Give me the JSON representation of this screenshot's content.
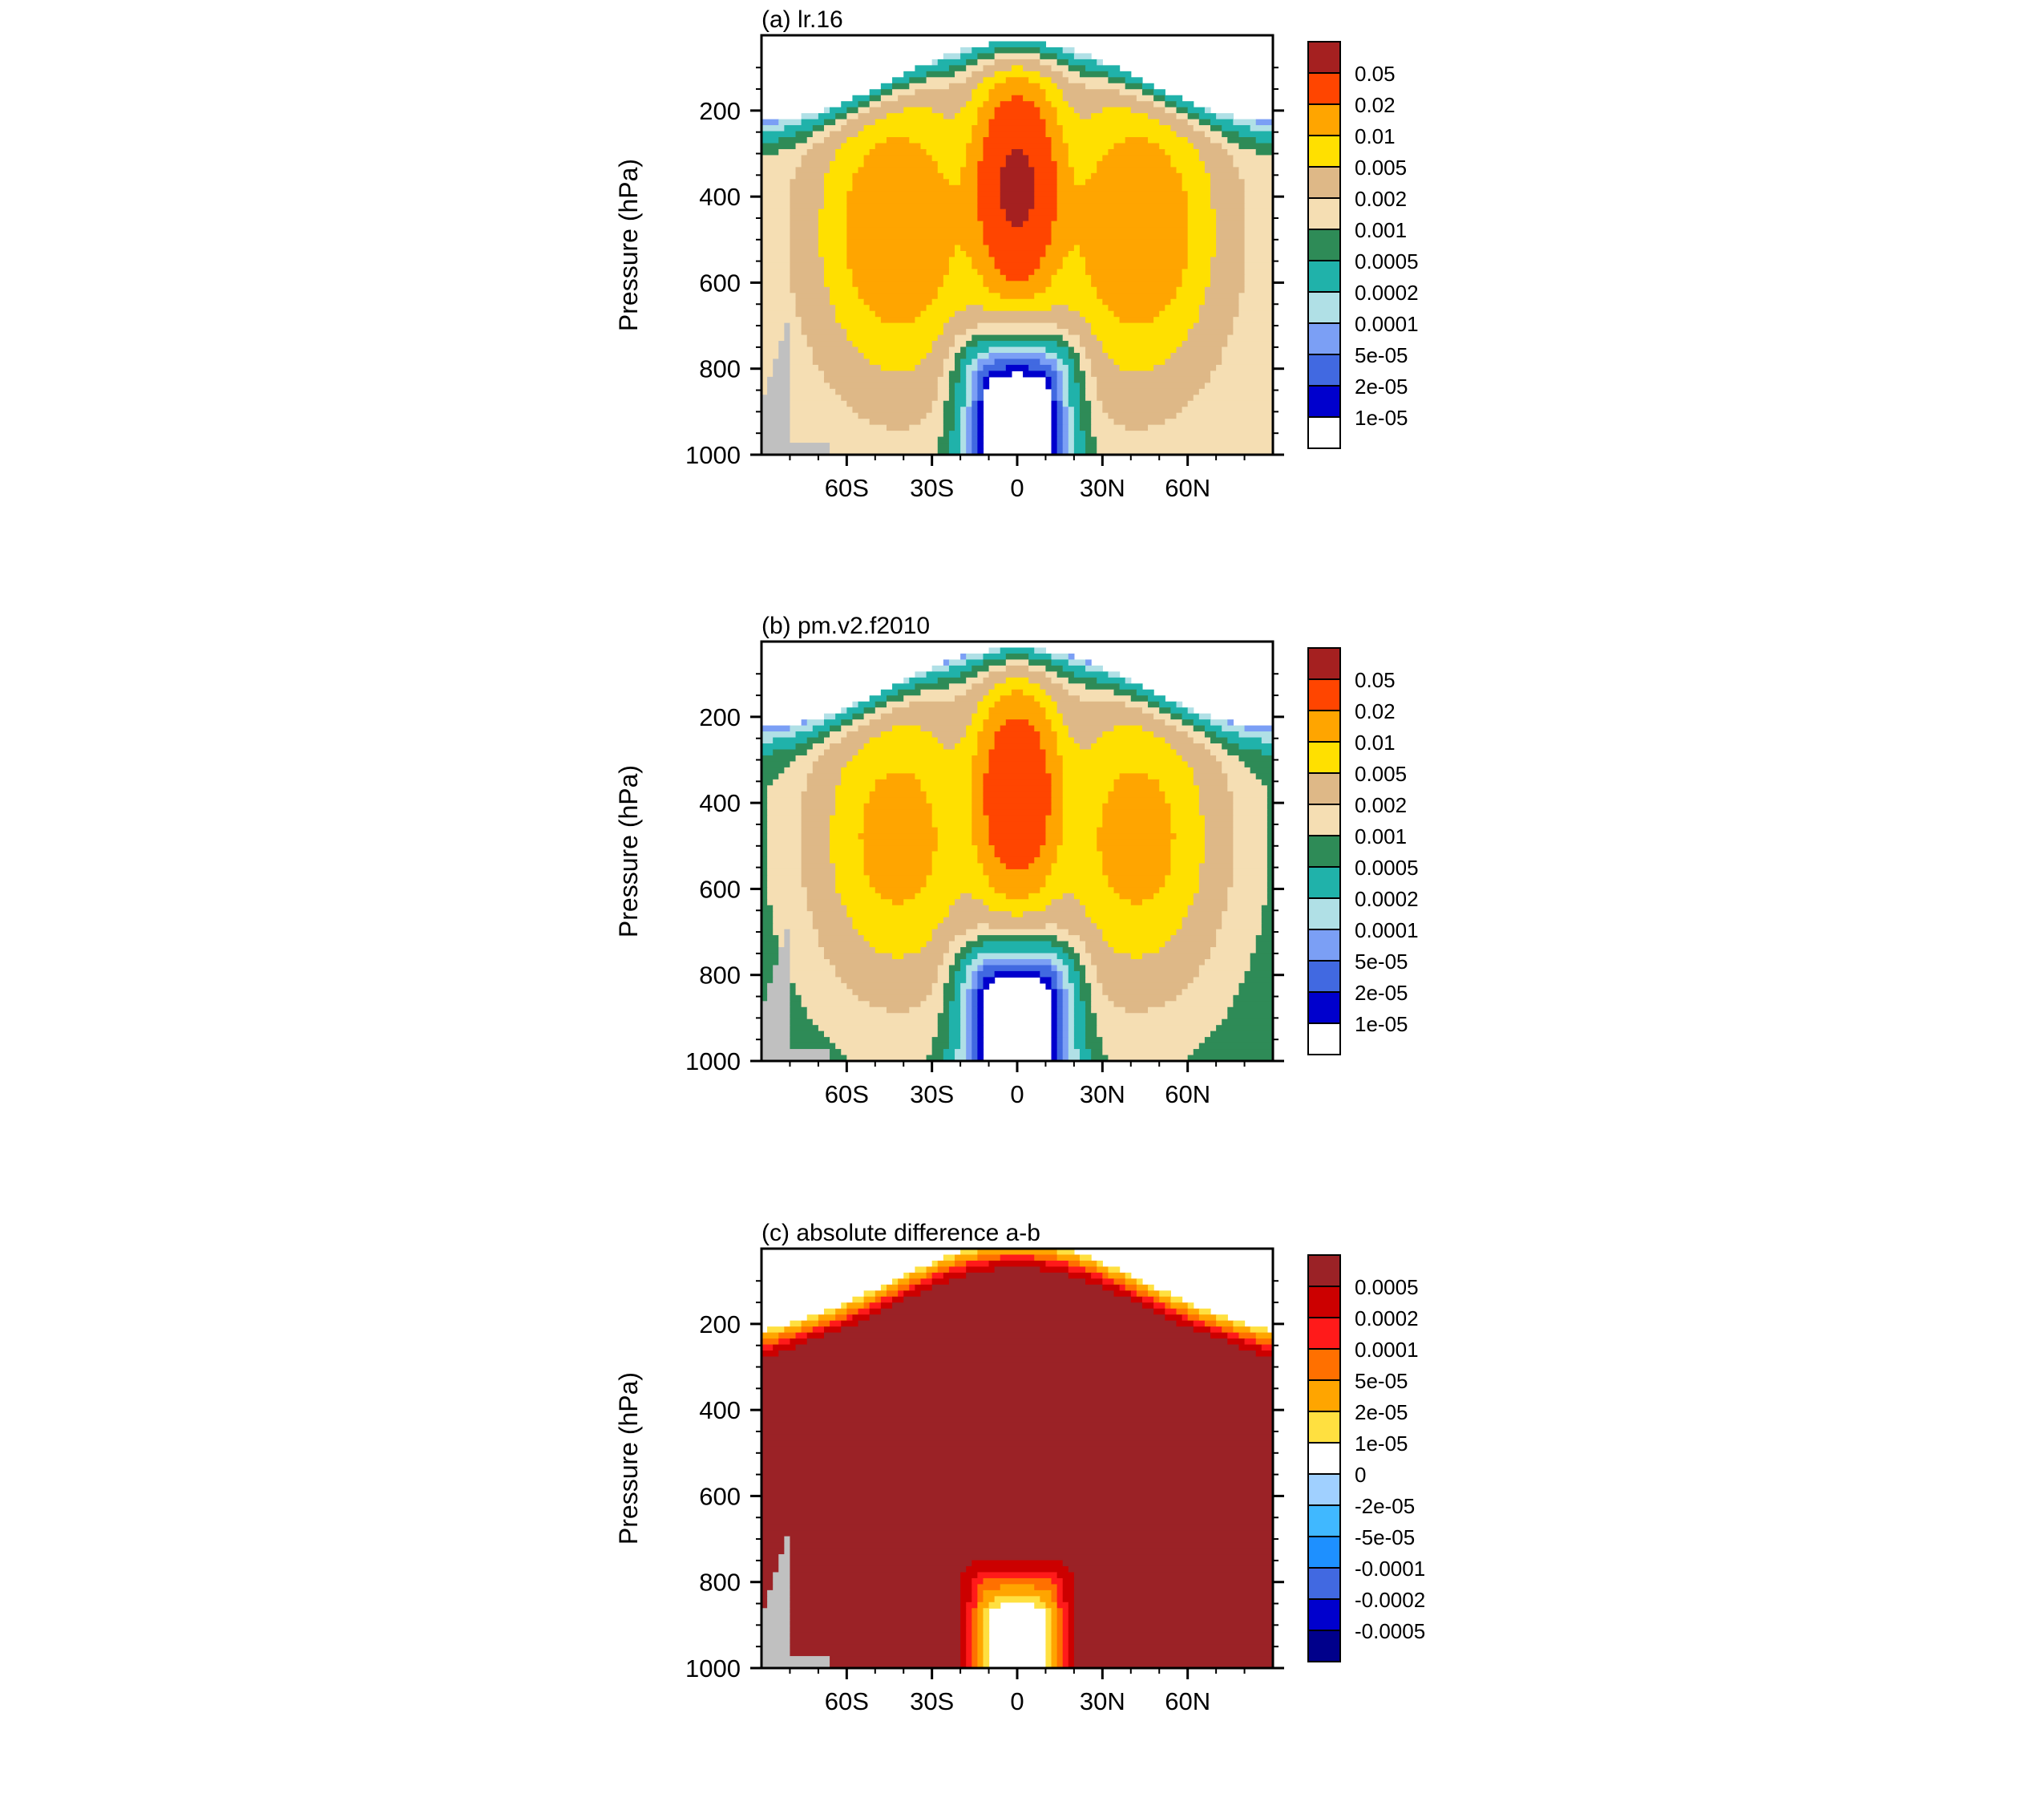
{
  "chart_data": [
    {
      "type": "heatmap",
      "title": "(a) lr.16",
      "ylabel": "Pressure (hPa)",
      "xlabel": "",
      "y_ticks": [
        200,
        400,
        600,
        800,
        1000
      ],
      "x_ticks": [
        "60S",
        "30S",
        "0",
        "30N",
        "60N"
      ],
      "ylim": [
        1000,
        25
      ],
      "y_reversed": true,
      "x_range": [
        "90S",
        "90N"
      ],
      "field": "single",
      "levels": [
        "0.05",
        "0.02",
        "0.01",
        "0.005",
        "0.002",
        "0.001",
        "0.0005",
        "0.0002",
        "0.0001",
        "5e-05",
        "2e-05",
        "1e-05"
      ],
      "colors": [
        "#a52020",
        "#ff4500",
        "#ffa500",
        "#ffe000",
        "#deb887",
        "#f5deb3",
        "#2e8b57",
        "#20b2aa",
        "#b0e0e6",
        "#7b9ff5",
        "#4169e1",
        "#0000cd",
        "#ffffff"
      ],
      "peak_fraction": 1.0
    },
    {
      "type": "heatmap",
      "title": "(b) pm.v2.f2010",
      "ylabel": "Pressure (hPa)",
      "xlabel": "",
      "y_ticks": [
        200,
        400,
        600,
        800,
        1000
      ],
      "x_ticks": [
        "60S",
        "30S",
        "0",
        "30N",
        "60N"
      ],
      "ylim": [
        1000,
        25
      ],
      "y_reversed": true,
      "x_range": [
        "90S",
        "90N"
      ],
      "field": "single",
      "levels": [
        "0.05",
        "0.02",
        "0.01",
        "0.005",
        "0.002",
        "0.001",
        "0.0005",
        "0.0002",
        "0.0001",
        "5e-05",
        "2e-05",
        "1e-05"
      ],
      "colors": [
        "#a52020",
        "#ff4500",
        "#ffa500",
        "#ffe000",
        "#deb887",
        "#f5deb3",
        "#2e8b57",
        "#20b2aa",
        "#b0e0e6",
        "#7b9ff5",
        "#4169e1",
        "#0000cd",
        "#ffffff"
      ],
      "peak_fraction": 0.72
    },
    {
      "type": "heatmap",
      "title": "(c) absolute difference a-b",
      "ylabel": "Pressure (hPa)",
      "xlabel": "",
      "y_ticks": [
        200,
        400,
        600,
        800,
        1000
      ],
      "x_ticks": [
        "60S",
        "30S",
        "0",
        "30N",
        "60N"
      ],
      "ylim": [
        1000,
        25
      ],
      "y_reversed": true,
      "x_range": [
        "90S",
        "90N"
      ],
      "field": "difference",
      "levels": [
        "0.0005",
        "0.0002",
        "0.0001",
        "5e-05",
        "2e-05",
        "1e-05",
        "0",
        "-2e-05",
        "-5e-05",
        "-0.0001",
        "-0.0002",
        "-0.0005"
      ],
      "colors": [
        "#9b2226",
        "#cc0000",
        "#ff1a1a",
        "#ff7000",
        "#ffa500",
        "#ffe040",
        "#ffffff",
        "#a0d0ff",
        "#40b8ff",
        "#1e90ff",
        "#4169e1",
        "#0000cd",
        "#00008b"
      ],
      "peak_fraction": 1.0
    }
  ]
}
